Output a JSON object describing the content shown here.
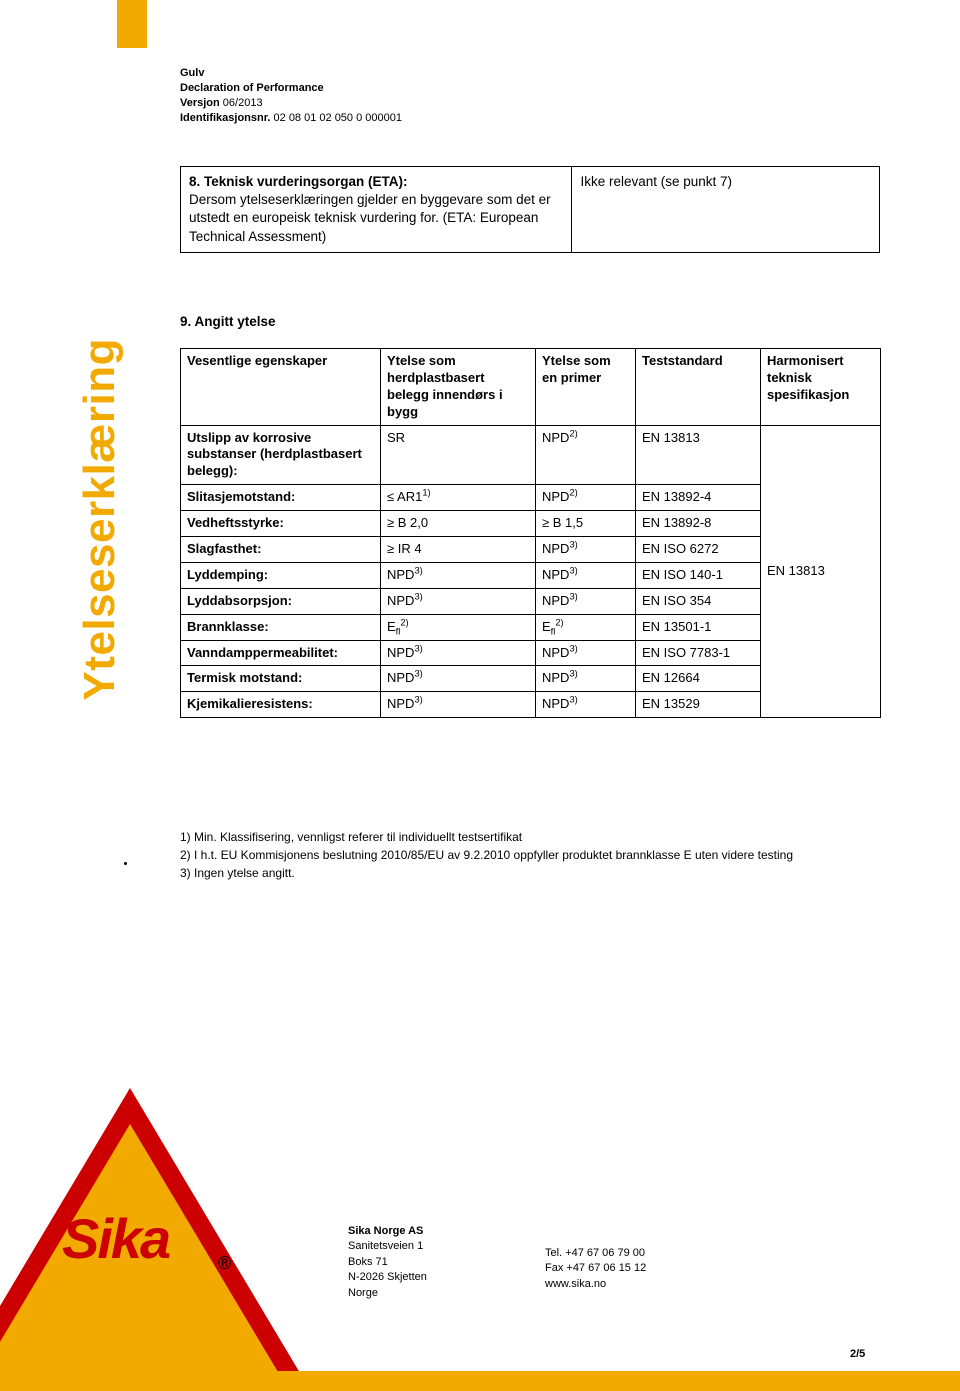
{
  "header": {
    "line1": "Gulv",
    "line2": "Declaration of Performance",
    "line3_label": "Versjon",
    "line3_value": " 06/2013",
    "line4_label": "Identifikasjonsnr.",
    "line4_value": " 02 08 01 02 050 0 000001"
  },
  "section8": {
    "left_html": "8. Teknisk vurderingsorgan (ETA):\nDersom ytelseserklæringen gjelder en byggevare som det er utstedt en europeisk teknisk vurdering for. (ETA: European Technical Assessment)",
    "right": "Ikke relevant (se punkt 7)"
  },
  "section9_title": "9. Angitt ytelse",
  "sidebar_heading": "Ytelseserklæring",
  "table": {
    "headers": {
      "c0": "Vesentlige egenskaper",
      "c1": "Ytelse som herdplastbasert belegg innendørs i bygg",
      "c2": "Ytelse som en primer",
      "c3": "Teststandard",
      "c4": "Harmonisert teknisk spesifikasjon"
    },
    "rows": [
      {
        "c0": "Utslipp av korrosive substanser (herdplastbasert belegg):",
        "c1": "SR",
        "c2": "NPD",
        "c2_sup": "2)",
        "c3": "EN 13813"
      },
      {
        "c0": "Slitasjemotstand:",
        "c1": "≤ AR1",
        "c1_sup": "1)",
        "c2": "NPD",
        "c2_sup": "2)",
        "c3": "EN 13892-4"
      },
      {
        "c0": "Vedheftsstyrke:",
        "c1": "≥ B 2,0",
        "c2": "≥ B 1,5",
        "c3": "EN 13892-8"
      },
      {
        "c0": "Slagfasthet:",
        "c1": "≥ IR 4",
        "c2": "NPD",
        "c2_sup": "3)",
        "c3": "EN ISO 6272"
      },
      {
        "c0": "Lyddemping:",
        "c1": "NPD",
        "c1_sup": "3)",
        "c2": "NPD",
        "c2_sup": "3)",
        "c3": "EN ISO 140-1"
      },
      {
        "c0": "Lyddabsorpsjon:",
        "c1": "NPD",
        "c1_sup": "3)",
        "c2": "NPD",
        "c2_sup": "3)",
        "c3": "EN ISO 354"
      },
      {
        "c0": "Brannklasse:",
        "c1": "E",
        "c1_sub": "fl",
        "c1_sup": "2)",
        "c2": "E",
        "c2_sub": "fl",
        "c2_sup": "2)",
        "c3": "EN 13501-1"
      },
      {
        "c0": "Vanndamppermeabilitet:",
        "c1": "NPD",
        "c1_sup": "3)",
        "c2": "NPD",
        "c2_sup": "3)",
        "c3": "EN ISO 7783-1"
      },
      {
        "c0": "Termisk motstand:",
        "c1": "NPD",
        "c1_sup": "3)",
        "c2": "NPD",
        "c2_sup": "3)",
        "c3": "EN 12664"
      },
      {
        "c0": "Kjemikalieresistens:",
        "c1": "NPD",
        "c1_sup": "3)",
        "c2": "NPD",
        "c2_sup": "3)",
        "c3": "EN 13529"
      }
    ],
    "merged_right": "EN 13813"
  },
  "footnotes": {
    "n1": "1)  Min. Klassifisering, vennligst referer til individuellt testsertifikat",
    "n2": "2)  I h.t. EU Kommisjonens beslutning 2010/85/EU av 9.2.2010 oppfyller produktet brannklasse E uten videre testing",
    "n3": "3)  Ingen ytelse angitt."
  },
  "footer": {
    "company": "Sika Norge AS",
    "addr1": "Sanitetsveien 1",
    "addr2": "Boks 71",
    "addr3": "N-2026 Skjetten",
    "addr4": "Norge",
    "tel": "Tel.   +47 67 06 79 00",
    "fax": "Fax  +47 67 06 15 12",
    "web": "www.sika.no",
    "logo_text": "Sika",
    "page": "2/5"
  },
  "colors": {
    "brand_yellow": "#f2a900",
    "brand_red": "#cc0000"
  }
}
